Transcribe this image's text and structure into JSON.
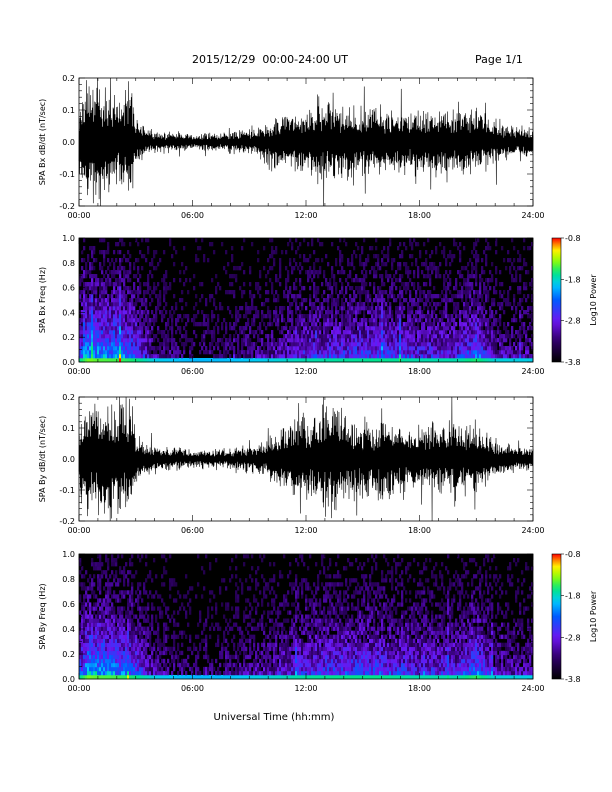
{
  "header": {
    "title": "2015/12/29  00:00-24:00 UT",
    "page": "Page 1/1"
  },
  "xlabel": "Universal Time (hh:mm)",
  "chart_data": [
    {
      "type": "line",
      "ylabel": "SPA Bx dB/dt (nT/sec)",
      "xlim": [
        0,
        24
      ],
      "ylim": [
        -0.2,
        0.2
      ],
      "x_ticks": [
        "00:00",
        "06:00",
        "12:00",
        "18:00",
        "24:00"
      ],
      "y_ticks": [
        "-0.2",
        "-0.1",
        "0.0",
        "0.1",
        "0.2"
      ],
      "series": [
        {
          "x_hours": [
            0,
            0.3,
            0.5,
            1,
            1.5,
            2,
            2.4,
            2.8,
            3,
            3.5,
            4,
            5,
            6,
            7,
            8,
            9,
            9.5,
            10,
            10.5,
            11,
            12,
            13,
            13.5,
            14,
            15,
            16,
            17,
            18,
            19,
            19.5,
            20,
            21,
            21.5,
            22,
            23,
            24
          ],
          "amplitude": [
            0.1,
            0.22,
            0.22,
            0.22,
            0.2,
            0.16,
            0.22,
            0.22,
            0.09,
            0.05,
            0.04,
            0.035,
            0.03,
            0.035,
            0.04,
            0.05,
            0.06,
            0.08,
            0.09,
            0.1,
            0.12,
            0.14,
            0.15,
            0.13,
            0.12,
            0.13,
            0.12,
            0.11,
            0.12,
            0.13,
            0.12,
            0.12,
            0.1,
            0.08,
            0.06,
            0.05
          ]
        }
      ]
    },
    {
      "type": "heatmap",
      "ylabel": "SPA Bx Freq (Hz)",
      "xlim": [
        0,
        24
      ],
      "ylim": [
        0,
        1.0
      ],
      "x_ticks": [
        "00:00",
        "06:00",
        "12:00",
        "18:00",
        "24:00"
      ],
      "y_ticks": [
        "0.0",
        "0.2",
        "0.4",
        "0.6",
        "0.8",
        "1.0"
      ],
      "colorbar": {
        "label": "Log10 Power",
        "ticks": [
          "-0.8",
          "-1.8",
          "-2.8",
          "-3.8"
        ],
        "range": [
          -3.8,
          -0.8
        ]
      },
      "activity": {
        "x_hours": [
          0,
          0.5,
          1,
          2,
          3,
          4,
          6,
          8,
          10,
          12,
          14,
          16,
          18,
          20,
          21,
          22,
          24
        ],
        "level": [
          0.6,
          1.0,
          0.9,
          0.85,
          0.7,
          0.35,
          0.2,
          0.25,
          0.35,
          0.55,
          0.6,
          0.65,
          0.55,
          0.55,
          0.75,
          0.4,
          0.35
        ]
      }
    },
    {
      "type": "line",
      "ylabel": "SPA By dB/dt (nT/sec)",
      "xlim": [
        0,
        24
      ],
      "ylim": [
        -0.2,
        0.2
      ],
      "x_ticks": [
        "00:00",
        "06:00",
        "12:00",
        "18:00",
        "24:00"
      ],
      "y_ticks": [
        "-0.2",
        "-0.1",
        "0.0",
        "0.1",
        "0.2"
      ],
      "series": [
        {
          "x_hours": [
            0,
            0.3,
            0.5,
            1,
            1.5,
            2,
            2.4,
            2.8,
            3,
            3.5,
            4,
            5,
            6,
            7,
            8,
            9,
            9.5,
            10,
            10.5,
            11,
            12,
            13,
            13.5,
            14,
            15,
            16,
            17,
            18,
            19,
            19.5,
            20,
            21,
            21.5,
            22,
            23,
            24
          ],
          "amplitude": [
            0.12,
            0.22,
            0.22,
            0.22,
            0.22,
            0.2,
            0.22,
            0.22,
            0.1,
            0.06,
            0.05,
            0.04,
            0.035,
            0.035,
            0.04,
            0.05,
            0.06,
            0.08,
            0.1,
            0.13,
            0.16,
            0.19,
            0.2,
            0.17,
            0.14,
            0.15,
            0.13,
            0.12,
            0.13,
            0.14,
            0.13,
            0.12,
            0.1,
            0.07,
            0.05,
            0.045
          ]
        }
      ]
    },
    {
      "type": "heatmap",
      "ylabel": "SPA By Freq (Hz)",
      "xlim": [
        0,
        24
      ],
      "ylim": [
        0,
        1.0
      ],
      "x_ticks": [
        "00:00",
        "06:00",
        "12:00",
        "18:00",
        "24:00"
      ],
      "y_ticks": [
        "0.0",
        "0.2",
        "0.4",
        "0.6",
        "0.8",
        "1.0"
      ],
      "colorbar": {
        "label": "Log10 Power",
        "ticks": [
          "-0.8",
          "-1.8",
          "-2.8",
          "-3.8"
        ],
        "range": [
          -3.8,
          -0.8
        ]
      },
      "activity": {
        "x_hours": [
          0,
          0.5,
          1,
          2,
          3,
          4,
          6,
          8,
          10,
          12,
          14,
          16,
          18,
          20,
          21,
          22,
          24
        ],
        "level": [
          0.6,
          1.0,
          0.9,
          0.85,
          0.7,
          0.35,
          0.2,
          0.25,
          0.4,
          0.6,
          0.65,
          0.65,
          0.55,
          0.55,
          0.8,
          0.4,
          0.35
        ]
      }
    }
  ]
}
